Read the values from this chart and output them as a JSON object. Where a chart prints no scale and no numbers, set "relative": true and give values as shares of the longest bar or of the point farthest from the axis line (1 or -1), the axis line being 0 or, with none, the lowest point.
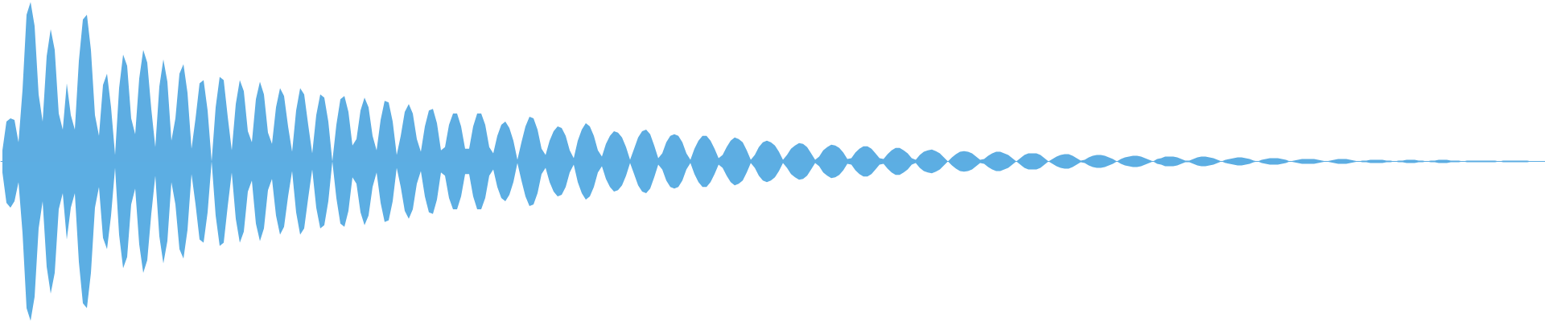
{
  "chart_data": {
    "type": "area",
    "relative": true,
    "categories": [
      null,
      null,
      null,
      null,
      null,
      null,
      null,
      null,
      null,
      null,
      null,
      null,
      null,
      null,
      null,
      null,
      null,
      null,
      null,
      null,
      null,
      null,
      null,
      null,
      null,
      null,
      null,
      null,
      null,
      null,
      null,
      null,
      null,
      null,
      null,
      null,
      null,
      null,
      null,
      null,
      null,
      null,
      null,
      null,
      null,
      null,
      null,
      null,
      null,
      null,
      null,
      null,
      null,
      null,
      null,
      null,
      null,
      null,
      null,
      null,
      null,
      null,
      null,
      null,
      null,
      null,
      null,
      null,
      null,
      null,
      null,
      null,
      null,
      null,
      null,
      null,
      null,
      null,
      null,
      null,
      null,
      null,
      null,
      null,
      null,
      null,
      null,
      null,
      null,
      null,
      null,
      null,
      null,
      null,
      null,
      null,
      null,
      null,
      null,
      null,
      null,
      null,
      null,
      null,
      null,
      null,
      null,
      null,
      null,
      null,
      null,
      null,
      null,
      null,
      null,
      null,
      null,
      null,
      null,
      null,
      null,
      null,
      null,
      null,
      null,
      null,
      null,
      null,
      null,
      null,
      null,
      null,
      null,
      null,
      null,
      null,
      null,
      null,
      null,
      null,
      null,
      null,
      null,
      null,
      null,
      null,
      null,
      null,
      null,
      null,
      null,
      null,
      null,
      null,
      null,
      null,
      null,
      null,
      null,
      null,
      null,
      null,
      null,
      null,
      null,
      null,
      null,
      null,
      null,
      null,
      null,
      null,
      null,
      null,
      null,
      null,
      null,
      null,
      null,
      null,
      null,
      null,
      null,
      null,
      null,
      null,
      null,
      null,
      null,
      null,
      null,
      null,
      null,
      null,
      null,
      null,
      null,
      null,
      null,
      null,
      null,
      null,
      null,
      null,
      null,
      null,
      null,
      null,
      null,
      null,
      null,
      null,
      null,
      null,
      null,
      null,
      null,
      null,
      null,
      null,
      null,
      null,
      null,
      null,
      null,
      null,
      null,
      null,
      null,
      null,
      null,
      null,
      null,
      null,
      null,
      null,
      null,
      null,
      null,
      null,
      null,
      null,
      null,
      null,
      null,
      null,
      null,
      null,
      null,
      null,
      null,
      null,
      null,
      null,
      null,
      null,
      null,
      null,
      null,
      null,
      null,
      null,
      null,
      null,
      null,
      null,
      null,
      null,
      null,
      null,
      null,
      null,
      null,
      null,
      null,
      null,
      null,
      null,
      null,
      null,
      null,
      null,
      null,
      null,
      null,
      null,
      null,
      null,
      null,
      null,
      null,
      null,
      null,
      null,
      null,
      null,
      null,
      null,
      null,
      null,
      null,
      null,
      null,
      null,
      null,
      null,
      null,
      null,
      null,
      null,
      null,
      null,
      null,
      null,
      null,
      null,
      null,
      null,
      null,
      null,
      null,
      null,
      null,
      null,
      null,
      null,
      null,
      null,
      null,
      null,
      null,
      null,
      null,
      null,
      null,
      null,
      null,
      null,
      null,
      null,
      null,
      null,
      null,
      null,
      null,
      null,
      null,
      null,
      null,
      null,
      null,
      null,
      null,
      null,
      null,
      null,
      null,
      null,
      null,
      null,
      null,
      null,
      null,
      null,
      null,
      null,
      null,
      null,
      null,
      null,
      null,
      null,
      null,
      null,
      null,
      null,
      null,
      null,
      null,
      null,
      null,
      null,
      null,
      null
    ],
    "ref_lines": [
      {
        "axis": "y",
        "value": 0,
        "color": "#5dade2"
      }
    ],
    "series": [
      {
        "color": "#5dade2",
        "values": [
          0.07,
          0.25,
          0.27,
          0.26,
          0.12,
          0.45,
          0.92,
          1.0,
          0.85,
          0.42,
          0.25,
          0.66,
          0.83,
          0.7,
          0.3,
          0.2,
          0.49,
          0.29,
          0.2,
          0.63,
          0.89,
          0.92,
          0.7,
          0.29,
          0.16,
          0.48,
          0.55,
          0.34,
          0.04,
          0.46,
          0.67,
          0.6,
          0.27,
          0.17,
          0.52,
          0.7,
          0.62,
          0.33,
          0.09,
          0.47,
          0.64,
          0.5,
          0.13,
          0.27,
          0.55,
          0.61,
          0.43,
          0.08,
          0.27,
          0.49,
          0.51,
          0.32,
          0,
          0.34,
          0.53,
          0.51,
          0.28,
          0.07,
          0.36,
          0.51,
          0.44,
          0.19,
          0.12,
          0.39,
          0.5,
          0.42,
          0.18,
          0.11,
          0.34,
          0.46,
          0.41,
          0.22,
          0.06,
          0.32,
          0.46,
          0.42,
          0.23,
          0.05,
          0.29,
          0.42,
          0.4,
          0.25,
          0,
          0.23,
          0.39,
          0.41,
          0.31,
          0.1,
          0.14,
          0.32,
          0.4,
          0.34,
          0.16,
          0.07,
          0.26,
          0.38,
          0.37,
          0.25,
          0.04,
          0.16,
          0.31,
          0.36,
          0.3,
          0.14,
          0.06,
          0.22,
          0.32,
          0.33,
          0.24,
          0.07,
          0.09,
          0.23,
          0.3,
          0.3,
          0.22,
          0.08,
          0.08,
          0.22,
          0.3,
          0.3,
          0.23,
          0.09,
          0.05,
          0.16,
          0.23,
          0.25,
          0.21,
          0.13,
          0.01,
          0.12,
          0.22,
          0.28,
          0.27,
          0.2,
          0.08,
          0.04,
          0.13,
          0.19,
          0.22,
          0.21,
          0.16,
          0.07,
          0.02,
          0.13,
          0.2,
          0.24,
          0.22,
          0.16,
          0.07,
          0.03,
          0.11,
          0.16,
          0.19,
          0.18,
          0.15,
          0.09,
          0.01,
          0.08,
          0.15,
          0.19,
          0.2,
          0.17,
          0.1,
          0.02,
          0.05,
          0.12,
          0.16,
          0.17,
          0.16,
          0.12,
          0.05,
          0.01,
          0.08,
          0.13,
          0.16,
          0.16,
          0.13,
          0.08,
          0.02,
          0.04,
          0.09,
          0.13,
          0.15,
          0.14,
          0.12,
          0.07,
          0.01,
          0.04,
          0.09,
          0.12,
          0.13,
          0.12,
          0.1,
          0.06,
          0.01,
          0.04,
          0.08,
          0.1,
          0.115,
          0.11,
          0.09,
          0.05,
          0.01,
          0.03,
          0.07,
          0.09,
          0.105,
          0.1,
          0.085,
          0.055,
          0.015,
          0.02,
          0.055,
          0.08,
          0.095,
          0.095,
          0.08,
          0.05,
          0.02,
          0.015,
          0.045,
          0.07,
          0.085,
          0.085,
          0.07,
          0.05,
          0.02,
          0.01,
          0.04,
          0.06,
          0.07,
          0.075,
          0.065,
          0.05,
          0.025,
          0,
          0.025,
          0.045,
          0.06,
          0.065,
          0.06,
          0.05,
          0.03,
          0.01,
          0.015,
          0.035,
          0.05,
          0.06,
          0.06,
          0.05,
          0.04,
          0.02,
          0,
          0.02,
          0.04,
          0.05,
          0.05,
          0.05,
          0.04,
          0.02,
          0,
          0.015,
          0.03,
          0.04,
          0.045,
          0.045,
          0.035,
          0.02,
          0.005,
          0.01,
          0.025,
          0.035,
          0.04,
          0.04,
          0.035,
          0.025,
          0.015,
          0,
          0.015,
          0.025,
          0.03,
          0.035,
          0.035,
          0.03,
          0.02,
          0.01,
          0,
          0.015,
          0.02,
          0.03,
          0.03,
          0.03,
          0.025,
          0.015,
          0.005,
          0.005,
          0.015,
          0.025,
          0.03,
          0.03,
          0.025,
          0.02,
          0.01,
          0,
          0.01,
          0.015,
          0.02,
          0.025,
          0.025,
          0.02,
          0.015,
          0.005,
          0,
          0.01,
          0.015,
          0.02,
          0.02,
          0.02,
          0.015,
          0.01,
          0,
          0.005,
          0.01,
          0.015,
          0.015,
          0.015,
          0.015,
          0.01,
          0.005,
          0,
          0.005,
          0.01,
          0.015,
          0.015,
          0.015,
          0.01,
          0.005,
          0,
          0.005,
          0.005,
          0.01,
          0.01,
          0.01,
          0.01,
          0.005,
          0.005,
          0,
          0.005,
          0.005,
          0.01,
          0.01,
          0.01,
          0.005,
          0.005,
          0,
          0.005,
          0.005,
          0.01,
          0.01,
          0.01,
          0.005,
          0.005,
          0.005,
          0,
          0.005,
          0.005,
          0.005,
          0.005,
          0.005,
          0.005,
          0.005,
          0.005,
          0,
          0.005,
          0.005,
          0.005,
          0.005,
          0.005,
          0.005,
          0.005,
          0,
          0,
          0,
          0
        ]
      },
      {
        "color": "#5caee3",
        "values": [
          -0.07,
          -0.26,
          -0.29,
          -0.25,
          -0.13,
          -0.45,
          -0.92,
          -1.0,
          -0.85,
          -0.42,
          -0.25,
          -0.66,
          -0.83,
          -0.7,
          -0.3,
          -0.2,
          -0.49,
          -0.29,
          -0.2,
          -0.63,
          -0.89,
          -0.92,
          -0.7,
          -0.29,
          -0.16,
          -0.48,
          -0.55,
          -0.34,
          -0.04,
          -0.46,
          -0.67,
          -0.6,
          -0.27,
          -0.17,
          -0.52,
          -0.7,
          -0.62,
          -0.33,
          -0.09,
          -0.47,
          -0.64,
          -0.5,
          -0.13,
          -0.27,
          -0.55,
          -0.61,
          -0.43,
          -0.08,
          -0.27,
          -0.49,
          -0.51,
          -0.32,
          0,
          -0.34,
          -0.53,
          -0.51,
          -0.28,
          -0.07,
          -0.36,
          -0.51,
          -0.44,
          -0.19,
          -0.12,
          -0.39,
          -0.5,
          -0.42,
          -0.18,
          -0.11,
          -0.34,
          -0.46,
          -0.41,
          -0.22,
          -0.06,
          -0.32,
          -0.46,
          -0.42,
          -0.23,
          -0.05,
          -0.29,
          -0.42,
          -0.4,
          -0.25,
          0,
          -0.23,
          -0.39,
          -0.41,
          -0.31,
          -0.1,
          -0.14,
          -0.32,
          -0.4,
          -0.34,
          -0.16,
          -0.07,
          -0.26,
          -0.38,
          -0.37,
          -0.25,
          -0.04,
          -0.16,
          -0.31,
          -0.36,
          -0.3,
          -0.14,
          -0.06,
          -0.22,
          -0.32,
          -0.33,
          -0.24,
          -0.07,
          -0.09,
          -0.23,
          -0.3,
          -0.3,
          -0.22,
          -0.08,
          -0.08,
          -0.22,
          -0.3,
          -0.3,
          -0.23,
          -0.09,
          -0.05,
          -0.16,
          -0.23,
          -0.25,
          -0.21,
          -0.13,
          -0.01,
          -0.12,
          -0.22,
          -0.28,
          -0.27,
          -0.2,
          -0.08,
          -0.04,
          -0.13,
          -0.19,
          -0.22,
          -0.21,
          -0.16,
          -0.07,
          -0.02,
          -0.13,
          -0.2,
          -0.24,
          -0.22,
          -0.16,
          -0.07,
          -0.03,
          -0.11,
          -0.16,
          -0.19,
          -0.18,
          -0.15,
          -0.09,
          -0.01,
          -0.08,
          -0.15,
          -0.19,
          -0.2,
          -0.17,
          -0.1,
          -0.02,
          -0.05,
          -0.12,
          -0.16,
          -0.17,
          -0.16,
          -0.12,
          -0.05,
          -0.01,
          -0.08,
          -0.13,
          -0.16,
          -0.16,
          -0.13,
          -0.08,
          -0.02,
          -0.04,
          -0.09,
          -0.13,
          -0.15,
          -0.14,
          -0.12,
          -0.07,
          -0.01,
          -0.04,
          -0.09,
          -0.12,
          -0.13,
          -0.12,
          -0.1,
          -0.06,
          -0.01,
          -0.04,
          -0.08,
          -0.1,
          -0.115,
          -0.11,
          -0.09,
          -0.05,
          -0.01,
          -0.03,
          -0.07,
          -0.09,
          -0.105,
          -0.1,
          -0.085,
          -0.055,
          -0.015,
          -0.02,
          -0.055,
          -0.08,
          -0.095,
          -0.095,
          -0.08,
          -0.05,
          -0.02,
          -0.015,
          -0.045,
          -0.07,
          -0.085,
          -0.085,
          -0.07,
          -0.05,
          -0.02,
          -0.01,
          -0.04,
          -0.06,
          -0.07,
          -0.075,
          -0.065,
          -0.05,
          -0.025,
          0,
          -0.025,
          -0.045,
          -0.06,
          -0.065,
          -0.06,
          -0.05,
          -0.03,
          -0.01,
          -0.015,
          -0.035,
          -0.05,
          -0.06,
          -0.06,
          -0.05,
          -0.04,
          -0.02,
          0,
          -0.02,
          -0.04,
          -0.05,
          -0.05,
          -0.05,
          -0.04,
          -0.02,
          0,
          -0.015,
          -0.03,
          -0.04,
          -0.045,
          -0.045,
          -0.035,
          -0.02,
          -0.005,
          -0.01,
          -0.025,
          -0.035,
          -0.04,
          -0.04,
          -0.035,
          -0.025,
          -0.015,
          0,
          -0.015,
          -0.025,
          -0.03,
          -0.035,
          -0.035,
          -0.03,
          -0.02,
          -0.01,
          0,
          -0.015,
          -0.02,
          -0.03,
          -0.03,
          -0.03,
          -0.025,
          -0.015,
          -0.005,
          -0.005,
          -0.015,
          -0.025,
          -0.03,
          -0.03,
          -0.025,
          -0.02,
          -0.01,
          0,
          -0.01,
          -0.015,
          -0.02,
          -0.025,
          -0.025,
          -0.02,
          -0.015,
          -0.005,
          0,
          -0.01,
          -0.015,
          -0.02,
          -0.02,
          -0.02,
          -0.015,
          -0.01,
          0,
          -0.005,
          -0.01,
          -0.015,
          -0.015,
          -0.015,
          -0.015,
          -0.01,
          -0.005,
          0,
          -0.005,
          -0.01,
          -0.015,
          -0.015,
          -0.015,
          -0.01,
          -0.005,
          0,
          -0.005,
          -0.005,
          -0.01,
          -0.01,
          -0.01,
          -0.01,
          -0.005,
          -0.005,
          0,
          -0.005,
          -0.005,
          -0.01,
          -0.01,
          -0.01,
          -0.005,
          -0.005,
          0,
          -0.005,
          -0.005,
          -0.01,
          -0.01,
          -0.01,
          -0.005,
          -0.005,
          -0.005,
          0,
          -0.005,
          -0.005,
          -0.005,
          -0.005,
          -0.005,
          -0.005,
          -0.005,
          -0.005,
          0,
          -0.005,
          -0.005,
          -0.005,
          -0.005,
          -0.005,
          -0.005,
          -0.005,
          0,
          0,
          0,
          0
        ]
      }
    ]
  }
}
